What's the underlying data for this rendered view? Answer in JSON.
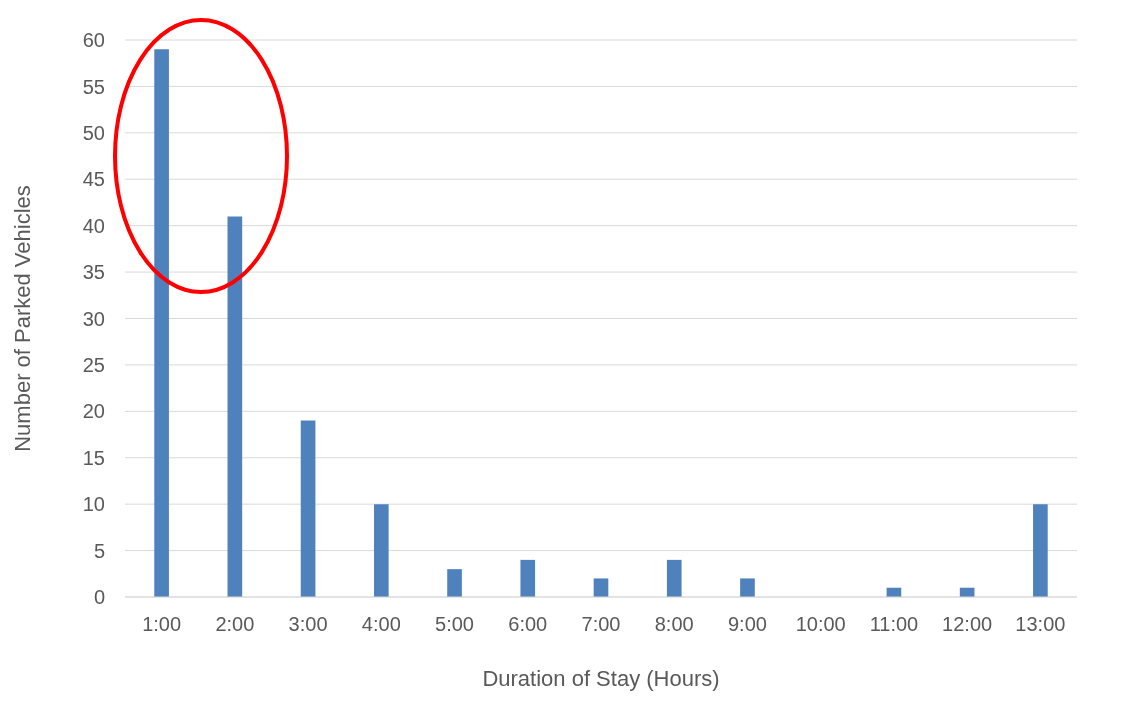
{
  "chart_data": {
    "type": "bar",
    "xlabel": "Duration of Stay (Hours)",
    "ylabel": "Number of Parked Vehicles",
    "categories": [
      "1:00",
      "2:00",
      "3:00",
      "4:00",
      "5:00",
      "6:00",
      "7:00",
      "8:00",
      "9:00",
      "10:00",
      "11:00",
      "12:00",
      "13:00"
    ],
    "values": [
      59,
      41,
      19,
      10,
      3,
      4,
      2,
      4,
      2,
      0,
      1,
      1,
      10
    ],
    "color": "#4f81bd",
    "ylim": [
      0,
      60
    ],
    "yticks": [
      0,
      5,
      10,
      15,
      20,
      25,
      30,
      35,
      40,
      45,
      50,
      55,
      60
    ],
    "grid": "y",
    "legend": false
  }
}
